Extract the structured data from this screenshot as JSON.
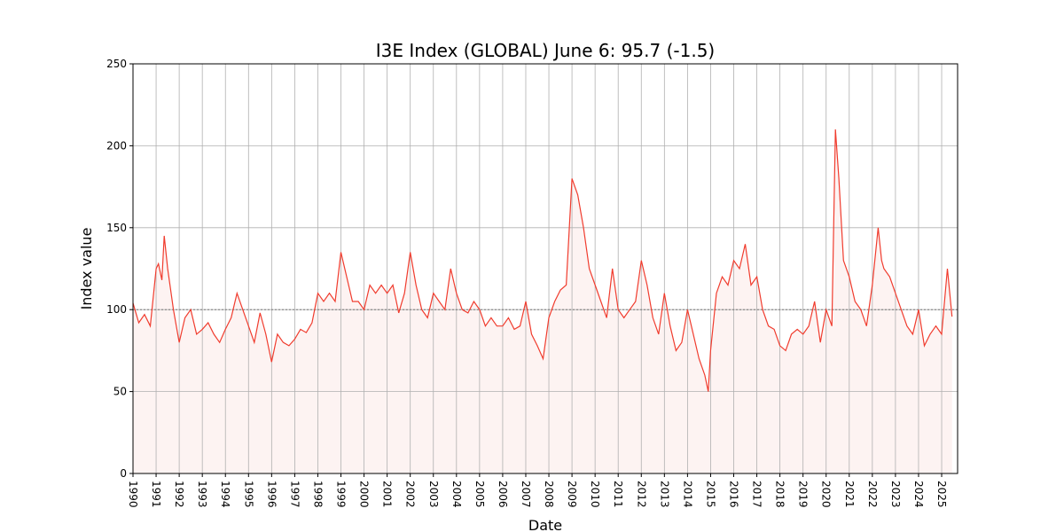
{
  "chart_data": {
    "type": "line",
    "title": "I3E Index (GLOBAL) June 6: 95.7 (-1.5)",
    "x_label": "Date",
    "y_label": "Index value",
    "x": [
      1990.0,
      1990.25,
      1990.5,
      1990.75,
      1991.0,
      1991.1,
      1991.25,
      1991.35,
      1991.5,
      1991.75,
      1992.0,
      1992.25,
      1992.5,
      1992.75,
      1993.0,
      1993.25,
      1993.5,
      1993.75,
      1994.0,
      1994.25,
      1994.5,
      1994.75,
      1995.0,
      1995.25,
      1995.5,
      1995.75,
      1996.0,
      1996.25,
      1996.5,
      1996.75,
      1997.0,
      1997.25,
      1997.5,
      1997.75,
      1998.0,
      1998.25,
      1998.5,
      1998.75,
      1999.0,
      1999.25,
      1999.5,
      1999.75,
      2000.0,
      2000.25,
      2000.5,
      2000.75,
      2001.0,
      2001.25,
      2001.5,
      2001.75,
      2002.0,
      2002.25,
      2002.5,
      2002.75,
      2003.0,
      2003.25,
      2003.5,
      2003.75,
      2004.0,
      2004.25,
      2004.5,
      2004.75,
      2005.0,
      2005.25,
      2005.5,
      2005.75,
      2006.0,
      2006.25,
      2006.5,
      2006.75,
      2007.0,
      2007.25,
      2007.5,
      2007.75,
      2008.0,
      2008.25,
      2008.5,
      2008.75,
      2009.0,
      2009.25,
      2009.5,
      2009.75,
      2010.0,
      2010.25,
      2010.5,
      2010.75,
      2011.0,
      2011.25,
      2011.5,
      2011.75,
      2012.0,
      2012.25,
      2012.5,
      2012.75,
      2013.0,
      2013.25,
      2013.5,
      2013.75,
      2014.0,
      2014.25,
      2014.5,
      2014.75,
      2014.9,
      2015.0,
      2015.25,
      2015.5,
      2015.75,
      2016.0,
      2016.25,
      2016.5,
      2016.75,
      2017.0,
      2017.25,
      2017.5,
      2017.75,
      2018.0,
      2018.25,
      2018.5,
      2018.75,
      2019.0,
      2019.25,
      2019.5,
      2019.75,
      2020.0,
      2020.25,
      2020.4,
      2020.55,
      2020.75,
      2021.0,
      2021.25,
      2021.5,
      2021.75,
      2022.0,
      2022.25,
      2022.4,
      2022.5,
      2022.75,
      2023.0,
      2023.25,
      2023.5,
      2023.75,
      2024.0,
      2024.25,
      2024.5,
      2024.75,
      2025.0,
      2025.25,
      2025.45
    ],
    "series": [
      {
        "color": "#f03c2e",
        "fill": "#fdf3f2",
        "values": [
          104,
          92,
          97,
          90,
          125,
          128,
          118,
          145,
          125,
          100,
          80,
          95,
          100,
          85,
          88,
          92,
          85,
          80,
          88,
          95,
          110,
          100,
          90,
          80,
          98,
          85,
          68,
          85,
          80,
          78,
          82,
          88,
          86,
          92,
          110,
          105,
          110,
          105,
          135,
          120,
          105,
          105,
          100,
          115,
          110,
          115,
          110,
          115,
          98,
          110,
          135,
          115,
          100,
          95,
          110,
          105,
          100,
          125,
          110,
          100,
          98,
          105,
          100,
          90,
          95,
          90,
          90,
          95,
          88,
          90,
          105,
          85,
          78,
          70,
          95,
          105,
          112,
          115,
          180,
          170,
          150,
          125,
          115,
          105,
          95,
          125,
          100,
          95,
          100,
          105,
          130,
          115,
          95,
          85,
          110,
          90,
          75,
          80,
          100,
          85,
          70,
          60,
          50,
          75,
          110,
          120,
          115,
          130,
          125,
          140,
          115,
          120,
          100,
          90,
          88,
          78,
          75,
          85,
          88,
          85,
          90,
          105,
          80,
          100,
          90,
          210,
          180,
          130,
          120,
          105,
          100,
          90,
          115,
          150,
          130,
          125,
          120,
          110,
          100,
          90,
          85,
          100,
          78,
          85,
          90,
          85,
          125,
          95.7
        ]
      }
    ],
    "reference_line": 100,
    "xlim": [
      1990,
      2025.69
    ],
    "xticks": [
      1990,
      1991,
      1992,
      1993,
      1994,
      1995,
      1996,
      1997,
      1998,
      1999,
      2000,
      2001,
      2002,
      2003,
      2004,
      2005,
      2006,
      2007,
      2008,
      2009,
      2010,
      2011,
      2012,
      2013,
      2014,
      2015,
      2016,
      2017,
      2018,
      2019,
      2020,
      2021,
      2022,
      2023,
      2024,
      2025
    ],
    "ylim": [
      0,
      250
    ],
    "yticks": [
      0,
      50,
      100,
      150,
      200,
      250
    ],
    "grid": true
  }
}
